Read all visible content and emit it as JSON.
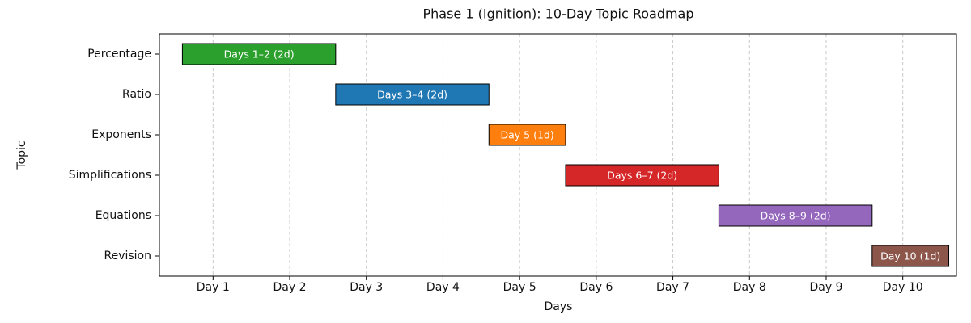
{
  "chart_data": {
    "type": "gantt",
    "title": "Phase 1 (Ignition): 10-Day Topic Roadmap",
    "x_label": "Days",
    "y_label": "Topic",
    "categories": [
      "Percentage",
      "Ratio",
      "Exponents",
      "Simplifications",
      "Equations",
      "Revision"
    ],
    "starts": [
      0.6,
      2.6,
      4.6,
      5.6,
      7.6,
      9.6
    ],
    "durations": [
      2,
      2,
      1,
      2,
      2,
      1
    ],
    "bar_labels": [
      "Days 1–2 (2d)",
      "Days 3–4 (2d)",
      "Day 5 (1d)",
      "Days 6–7 (2d)",
      "Days 8–9 (2d)",
      "Day 10 (1d)"
    ],
    "colors": [
      "#2ca02c",
      "#1f77b4",
      "#ff7f0e",
      "#d62728",
      "#9467bd",
      "#8c564b"
    ],
    "xlim": [
      0.3,
      10.7
    ],
    "xticks": [
      {
        "value": 1,
        "label": "Day 1"
      },
      {
        "value": 2,
        "label": "Day 2"
      },
      {
        "value": 3,
        "label": "Day 3"
      },
      {
        "value": 4,
        "label": "Day 4"
      },
      {
        "value": 5,
        "label": "Day 5"
      },
      {
        "value": 6,
        "label": "Day 6"
      },
      {
        "value": 7,
        "label": "Day 7"
      },
      {
        "value": 8,
        "label": "Day 8"
      },
      {
        "value": 9,
        "label": "Day 9"
      },
      {
        "value": 10,
        "label": "Day 10"
      }
    ],
    "grid": true
  }
}
